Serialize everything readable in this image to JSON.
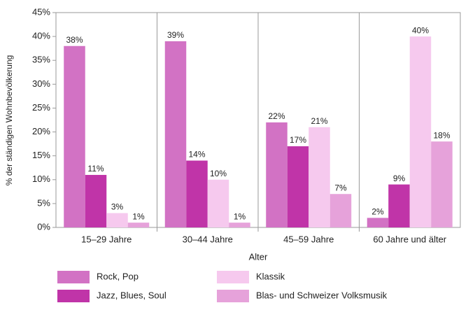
{
  "chart_data": {
    "type": "bar",
    "xlabel": "Alter",
    "ylabel": "% der ständigen Wohnbevölkerung",
    "categories": [
      "15–29 Jahre",
      "30–44 Jahre",
      "45–59 Jahre",
      "60 Jahre und älter"
    ],
    "series": [
      {
        "name": "Rock, Pop",
        "color": "#d272c4",
        "values": [
          38,
          39,
          22,
          2
        ],
        "value_labels": [
          "38%",
          "39%",
          "22%",
          "2%"
        ]
      },
      {
        "name": "Jazz, Blues, Soul",
        "color": "#c034a8",
        "values": [
          11,
          14,
          17,
          9
        ],
        "value_labels": [
          "11%",
          "14%",
          "17%",
          "9%"
        ]
      },
      {
        "name": "Klassik",
        "color": "#f6c9ee",
        "values": [
          3,
          10,
          21,
          40
        ],
        "value_labels": [
          "3%",
          "10%",
          "21%",
          "40%"
        ]
      },
      {
        "name": "Blas- und Schweizer Volksmusik",
        "color": "#e6a2da",
        "values": [
          1,
          1,
          7,
          18
        ],
        "value_labels": [
          "1%",
          "1%",
          "7%",
          "18%"
        ]
      }
    ],
    "ylim": [
      0,
      45
    ],
    "yticks": [
      {
        "value": 0,
        "label": "0%"
      },
      {
        "value": 5,
        "label": "5%"
      },
      {
        "value": 10,
        "label": "10%"
      },
      {
        "value": 15,
        "label": "15%"
      },
      {
        "value": 20,
        "label": "20%"
      },
      {
        "value": 25,
        "label": "25%"
      },
      {
        "value": 30,
        "label": "30%"
      },
      {
        "value": 35,
        "label": "35%"
      },
      {
        "value": 40,
        "label": "40%"
      },
      {
        "value": 45,
        "label": "45%"
      }
    ],
    "grid": false,
    "legend": "bottom"
  }
}
